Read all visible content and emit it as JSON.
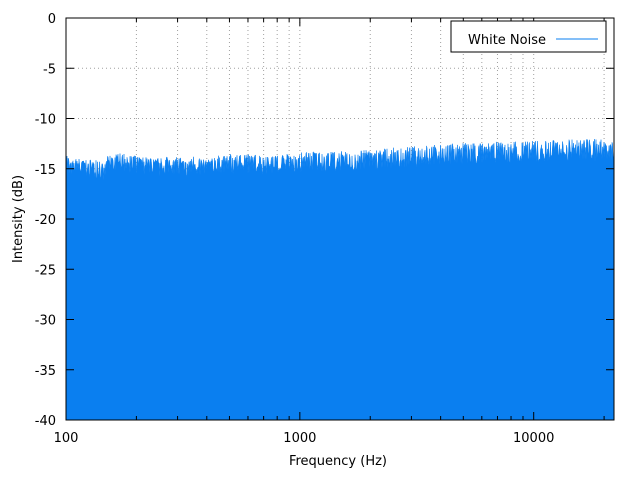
{
  "chart_data": {
    "type": "area",
    "xlabel": "Frequency (Hz)",
    "ylabel": "Intensity (dB)",
    "xscale": "log",
    "xlim": [
      100,
      22050
    ],
    "ylim": [
      -40,
      0
    ],
    "x_ticks": [
      100,
      1000,
      10000
    ],
    "x_tick_labels": [
      "100",
      "1000",
      "10000"
    ],
    "y_ticks": [
      0,
      -5,
      -10,
      -15,
      -20,
      -25,
      -30,
      -35,
      -40
    ],
    "y_tick_labels": [
      "0",
      "-5",
      "-10",
      "-15",
      "-20",
      "-25",
      "-30",
      "-35",
      "-40"
    ],
    "grid": true,
    "legend_position": "top-right",
    "series": [
      {
        "name": "White Noise",
        "color": "#0a7ff0",
        "x": [
          100,
          105,
          110,
          115,
          120,
          130,
          140,
          145,
          150,
          170,
          200,
          250,
          300,
          330,
          350,
          400,
          450,
          500,
          600,
          700,
          800,
          900,
          1000,
          1100,
          1200,
          1500,
          2000,
          2500,
          3000,
          4000,
          5000,
          6000,
          7000,
          8000,
          10000,
          12000,
          15000,
          18000,
          20000,
          22050
        ],
        "values": [
          -13.8,
          -14.8,
          -14.5,
          -14.5,
          -14.6,
          -14.6,
          -14.7,
          -15.2,
          -14.3,
          -14.0,
          -14.3,
          -14.5,
          -14.3,
          -15.0,
          -14.2,
          -14.8,
          -14.3,
          -14.2,
          -14.2,
          -14.3,
          -14.3,
          -14.2,
          -14.1,
          -13.9,
          -14.0,
          -14.0,
          -13.9,
          -13.7,
          -13.6,
          -13.4,
          -13.3,
          -13.3,
          -13.2,
          -13.2,
          -13.1,
          -13.1,
          -13.0,
          -13.0,
          -13.0,
          -13.0
        ]
      }
    ]
  }
}
